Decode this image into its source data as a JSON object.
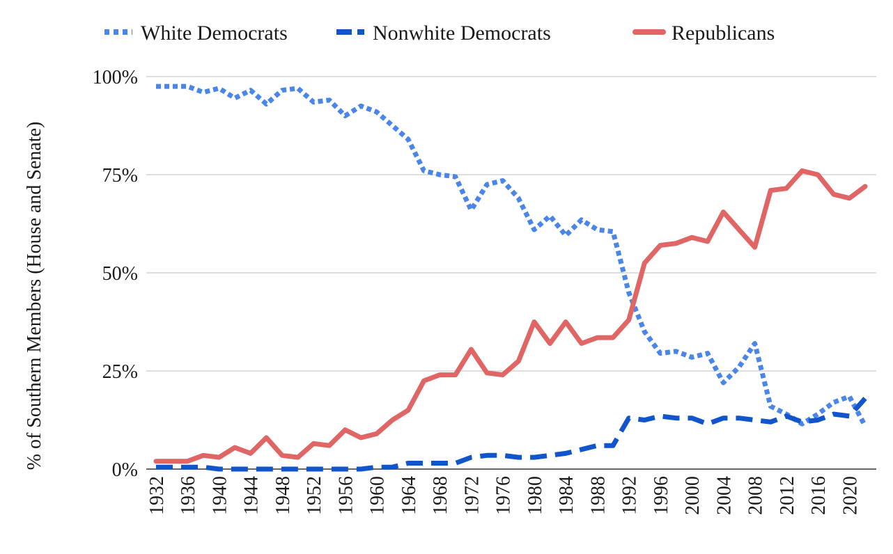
{
  "chart_data": {
    "type": "line",
    "title": "",
    "xlabel": "",
    "ylabel": "% of Southern Members (House and Senate)",
    "x": [
      1932,
      1934,
      1936,
      1938,
      1940,
      1942,
      1944,
      1946,
      1948,
      1950,
      1952,
      1954,
      1956,
      1958,
      1960,
      1962,
      1964,
      1966,
      1968,
      1970,
      1972,
      1974,
      1976,
      1978,
      1980,
      1982,
      1984,
      1986,
      1988,
      1990,
      1992,
      1994,
      1996,
      1998,
      2000,
      2002,
      2004,
      2006,
      2008,
      2010,
      2012,
      2014,
      2016,
      2018,
      2020,
      2022
    ],
    "xticks": [
      "1932",
      "1936",
      "1940",
      "1944",
      "1948",
      "1952",
      "1956",
      "1960",
      "1964",
      "1968",
      "1972",
      "1976",
      "1980",
      "1984",
      "1988",
      "1992",
      "1996",
      "2000",
      "2004",
      "2008",
      "2012",
      "2016",
      "2020"
    ],
    "ylim": [
      0,
      100
    ],
    "yticks": [
      "0%",
      "25%",
      "50%",
      "75%",
      "100%"
    ],
    "grid": "horizontal",
    "legend_position": "top",
    "series": [
      {
        "name": "White Democrats",
        "color": "#4a86e8",
        "style": "dotted",
        "values": [
          97.5,
          97.5,
          97.5,
          96,
          97,
          94.5,
          96.5,
          93,
          96.5,
          97,
          93.5,
          94,
          90,
          92.5,
          91,
          87.5,
          84,
          76,
          75,
          74.5,
          66,
          72.5,
          73.5,
          69,
          61,
          64.5,
          59.5,
          63.5,
          61,
          60.5,
          45,
          35,
          29.5,
          30,
          28.5,
          29.5,
          22,
          26,
          32,
          16,
          14,
          11.5,
          14,
          17,
          18.5,
          11
        ]
      },
      {
        "name": "Nonwhite Democrats",
        "color": "#1155cc",
        "style": "dashed",
        "values": [
          0.5,
          0.5,
          0.5,
          0.5,
          0,
          0,
          0,
          0,
          0,
          0,
          0,
          0,
          0,
          0,
          0.5,
          0.5,
          1.5,
          1.5,
          1.5,
          1.5,
          3,
          3.5,
          3.5,
          3,
          3,
          3.5,
          4,
          5,
          6,
          6,
          13,
          12.5,
          13.5,
          13,
          13,
          11.5,
          13,
          13,
          12.5,
          12,
          13.5,
          12,
          12.5,
          14,
          13.5,
          18
        ]
      },
      {
        "name": "Republicans",
        "color": "#e06666",
        "style": "solid",
        "values": [
          2,
          2,
          2,
          3.5,
          3,
          5.5,
          4,
          8,
          3.5,
          3,
          6.5,
          6,
          10,
          8,
          9,
          12.5,
          15,
          22.5,
          24,
          24,
          30.5,
          24.5,
          24,
          27.5,
          37.5,
          32,
          37.5,
          32,
          33.5,
          33.5,
          38,
          52.5,
          57,
          57.5,
          59,
          58,
          65.5,
          61,
          56.5,
          71,
          71.5,
          76,
          75,
          70,
          69,
          72
        ]
      }
    ]
  }
}
